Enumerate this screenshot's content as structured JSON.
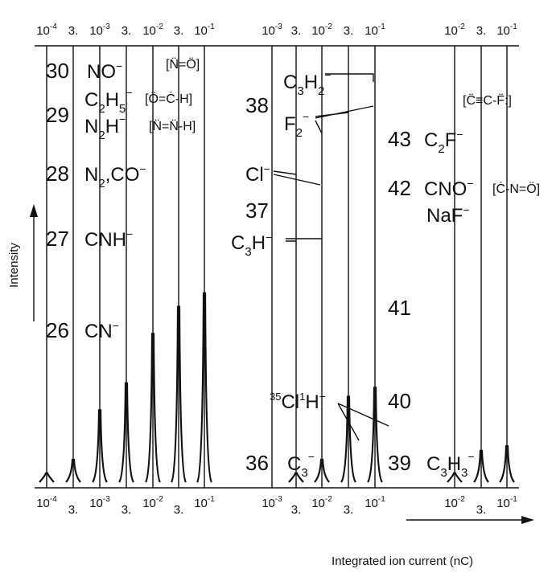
{
  "chart_data": {
    "type": "line",
    "xlabel": "Integrated ion current (nC)",
    "ylabel": "Intensity",
    "x_scale": "log",
    "panels": [
      {
        "ticks": [
          {
            "value": 0.0001,
            "label": "10",
            "exp": "-4"
          },
          {
            "value": 0.0003,
            "label": "3.",
            "exp": ""
          },
          {
            "value": 0.001,
            "label": "10",
            "exp": "-3"
          },
          {
            "value": 0.003,
            "label": "3.",
            "exp": ""
          },
          {
            "value": 0.01,
            "label": "10",
            "exp": "-2"
          },
          {
            "value": 0.03,
            "label": "3.",
            "exp": ""
          },
          {
            "value": 0.1,
            "label": "10",
            "exp": "-1"
          }
        ]
      },
      {
        "ticks": [
          {
            "value": 0.001,
            "label": "10",
            "exp": "-3"
          },
          {
            "value": 0.003,
            "label": "3.",
            "exp": ""
          },
          {
            "value": 0.01,
            "label": "10",
            "exp": "-2"
          },
          {
            "value": 0.03,
            "label": "3.",
            "exp": ""
          },
          {
            "value": 0.1,
            "label": "10",
            "exp": "-1"
          }
        ]
      },
      {
        "ticks": [
          {
            "value": 0.01,
            "label": "10",
            "exp": "-2"
          },
          {
            "value": 0.03,
            "label": "3.",
            "exp": ""
          },
          {
            "value": 0.1,
            "label": "10",
            "exp": "-1"
          }
        ]
      }
    ],
    "mass_labels": [
      {
        "panel": 0,
        "mass": "30",
        "ion": "NO⁻"
      },
      {
        "panel": 0,
        "mass": "29",
        "ion": "C₂H₅⁻ / N₂H⁻"
      },
      {
        "panel": 0,
        "mass": "28",
        "ion": "N₂⁻, CO⁻"
      },
      {
        "panel": 0,
        "mass": "27",
        "ion": "CNH⁻"
      },
      {
        "panel": 0,
        "mass": "26",
        "ion": "CN⁻"
      },
      {
        "panel": 1,
        "mass": "38",
        "ion": "C₃H₂⁻, F₂⁻"
      },
      {
        "panel": 1,
        "mass": "37",
        "ion": "Cl⁻, C₃H⁻"
      },
      {
        "panel": 1,
        "mass": "36",
        "ion": "C₃⁻, ³⁵Cl¹H⁻"
      },
      {
        "panel": 2,
        "mass": "43",
        "ion": "C₂F⁻"
      },
      {
        "panel": 2,
        "mass": "42",
        "ion": "CNO⁻, NaF⁻"
      },
      {
        "panel": 2,
        "mass": "41",
        "ion": ""
      },
      {
        "panel": 2,
        "mass": "40",
        "ion": ""
      },
      {
        "panel": 2,
        "mass": "39",
        "ion": "C₃H₃⁻"
      }
    ],
    "peak_heights": {
      "panel_0": [
        {
          "x": 0.0001,
          "y": 0.02
        },
        {
          "x": 0.0003,
          "y": 0.05
        },
        {
          "x": 0.001,
          "y": 0.16
        },
        {
          "x": 0.003,
          "y": 0.22
        },
        {
          "x": 0.01,
          "y": 0.33
        },
        {
          "x": 0.03,
          "y": 0.39
        },
        {
          "x": 0.1,
          "y": 0.42
        }
      ],
      "panel_1": [
        {
          "x": 0.003,
          "y": 0.02
        },
        {
          "x": 0.01,
          "y": 0.05
        },
        {
          "x": 0.03,
          "y": 0.19
        },
        {
          "x": 0.1,
          "y": 0.21
        }
      ],
      "panel_2": [
        {
          "x": 0.01,
          "y": 0.02
        },
        {
          "x": 0.03,
          "y": 0.07
        },
        {
          "x": 0.1,
          "y": 0.08
        }
      ]
    }
  },
  "text": {
    "mass_30": "30",
    "mass_29": "29",
    "mass_28": "28",
    "mass_27": "27",
    "mass_26": "26",
    "mass_38": "38",
    "mass_37": "37",
    "mass_36": "36",
    "mass_43": "43",
    "mass_42": "42",
    "mass_41": "41",
    "mass_40": "40",
    "mass_39": "39",
    "ion_no": "NO",
    "ion_c": "C",
    "ion_h5": "H",
    "ion_n": "N",
    "ion_h": "H",
    "ion_n2co": "N",
    "ion_co": ",CO",
    "ion_cnh": "CNH",
    "ion_cn": "CN",
    "ion_c3h2_c": "C",
    "ion_c3h2_h": "H",
    "ion_f": "F",
    "ion_cl": "Cl",
    "ion_c3h_c": "C",
    "ion_c3h_h": "H",
    "ion_c3": "C",
    "ion_clh": "Cl",
    "ion_clh_h": "H",
    "ion_c2f_c": "C",
    "ion_c2f_f": "F",
    "ion_cno": "CNO",
    "ion_naf": "NaF",
    "ion_c3h3_c": "C",
    "ion_c3h3_h": "H",
    "struct_no": "[N̈=Ö]",
    "struct_och": "[Ö=Ċ-H]",
    "struct_nnh": "[N̈=N̈-H]",
    "struct_ccf": "[C̈≡C-F̈:]",
    "struct_cno": "[Ċ-N=Ö]"
  }
}
